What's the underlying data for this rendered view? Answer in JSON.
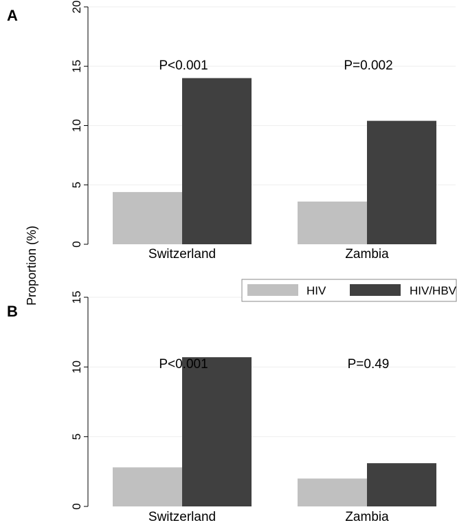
{
  "figure": {
    "ylabel": "Proportion (%)",
    "legend": {
      "placement": "between-panels-right",
      "items": [
        {
          "label": "HIV",
          "color": "#c0c0c0"
        },
        {
          "label": "HIV/HBV",
          "color": "#404040"
        }
      ]
    }
  },
  "chart_data": [
    {
      "panel": "A",
      "type": "bar",
      "categories": [
        "Switzerland",
        "Zambia"
      ],
      "series": [
        {
          "name": "HIV",
          "values": [
            4.4,
            3.6
          ],
          "color": "#c0c0c0"
        },
        {
          "name": "HIV/HBV",
          "values": [
            14.0,
            10.4
          ],
          "color": "#404040"
        }
      ],
      "annotations": [
        "P<0.001",
        "P=0.002"
      ],
      "ylim": [
        0,
        20
      ],
      "yticks": [
        0,
        5,
        10,
        15,
        20
      ],
      "grid": true
    },
    {
      "panel": "B",
      "type": "bar",
      "categories": [
        "Switzerland",
        "Zambia"
      ],
      "series": [
        {
          "name": "HIV",
          "values": [
            2.8,
            2.0
          ],
          "color": "#c0c0c0"
        },
        {
          "name": "HIV/HBV",
          "values": [
            10.7,
            3.1
          ],
          "color": "#404040"
        }
      ],
      "annotations": [
        "P<0.001",
        "P=0.49"
      ],
      "ylim": [
        0,
        15
      ],
      "yticks": [
        0,
        5,
        10,
        15
      ],
      "grid": true
    }
  ]
}
